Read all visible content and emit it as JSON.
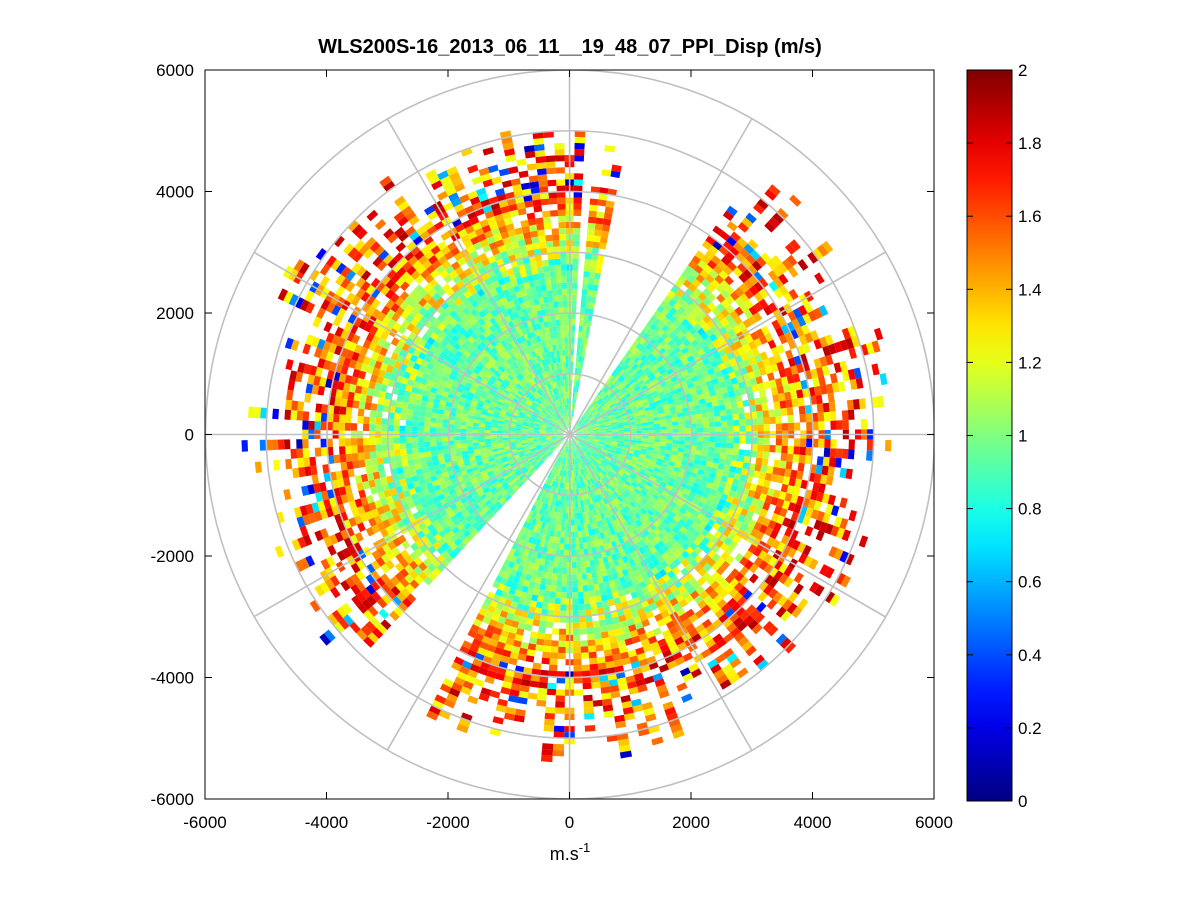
{
  "chart_data": {
    "type": "heatmap",
    "subtype": "polar-ppi-scan",
    "title": "WLS200S-16_2013_06_11__19_48_07_PPI_Disp (m/s)",
    "xlabel_base": "m.s",
    "xlabel_sup": "-1",
    "ylabel": "",
    "xlim": [
      -6000,
      6000
    ],
    "ylim": [
      -6000,
      6000
    ],
    "x_ticks": [
      -6000,
      -4000,
      -2000,
      0,
      2000,
      4000,
      6000
    ],
    "y_ticks": [
      -6000,
      -4000,
      -2000,
      0,
      2000,
      4000,
      6000
    ],
    "x_tick_labels": [
      "-6000",
      "-4000",
      "-2000",
      "0",
      "2000",
      "4000",
      "6000"
    ],
    "y_tick_labels": [
      "-6000",
      "-4000",
      "-2000",
      "0",
      "2000",
      "4000",
      "6000"
    ],
    "polar_grid": {
      "ring_radii": [
        1000,
        2000,
        3000,
        4000,
        5000,
        6000
      ],
      "spoke_angles_deg": [
        0,
        30,
        60,
        90,
        120,
        150,
        180,
        210,
        240,
        270,
        300,
        330
      ]
    },
    "scan": {
      "range_gate_m": 100,
      "azimuth_step_deg": 2,
      "max_range_m": 6000,
      "typical_data_range_m": 4800,
      "gaps_deg": [
        [
          55,
          80
        ],
        [
          86,
          87
        ],
        [
          228,
          244
        ]
      ],
      "inner_zone_value": 0.95,
      "outer_zone_value": 1.9,
      "value_unit": "m/s"
    },
    "colorbar": {
      "colormap": "jet",
      "clim": [
        0,
        2
      ],
      "ticks": [
        0,
        0.2,
        0.4,
        0.6,
        0.8,
        1,
        1.2,
        1.4,
        1.6,
        1.8,
        2
      ],
      "tick_labels": [
        "0",
        "0.2",
        "0.4",
        "0.6",
        "0.8",
        "1",
        "1.2",
        "1.4",
        "1.6",
        "1.8",
        "2"
      ]
    },
    "colors": {
      "grid": "#c0c0c0",
      "axes": "#000000",
      "background": "#ffffff"
    }
  }
}
